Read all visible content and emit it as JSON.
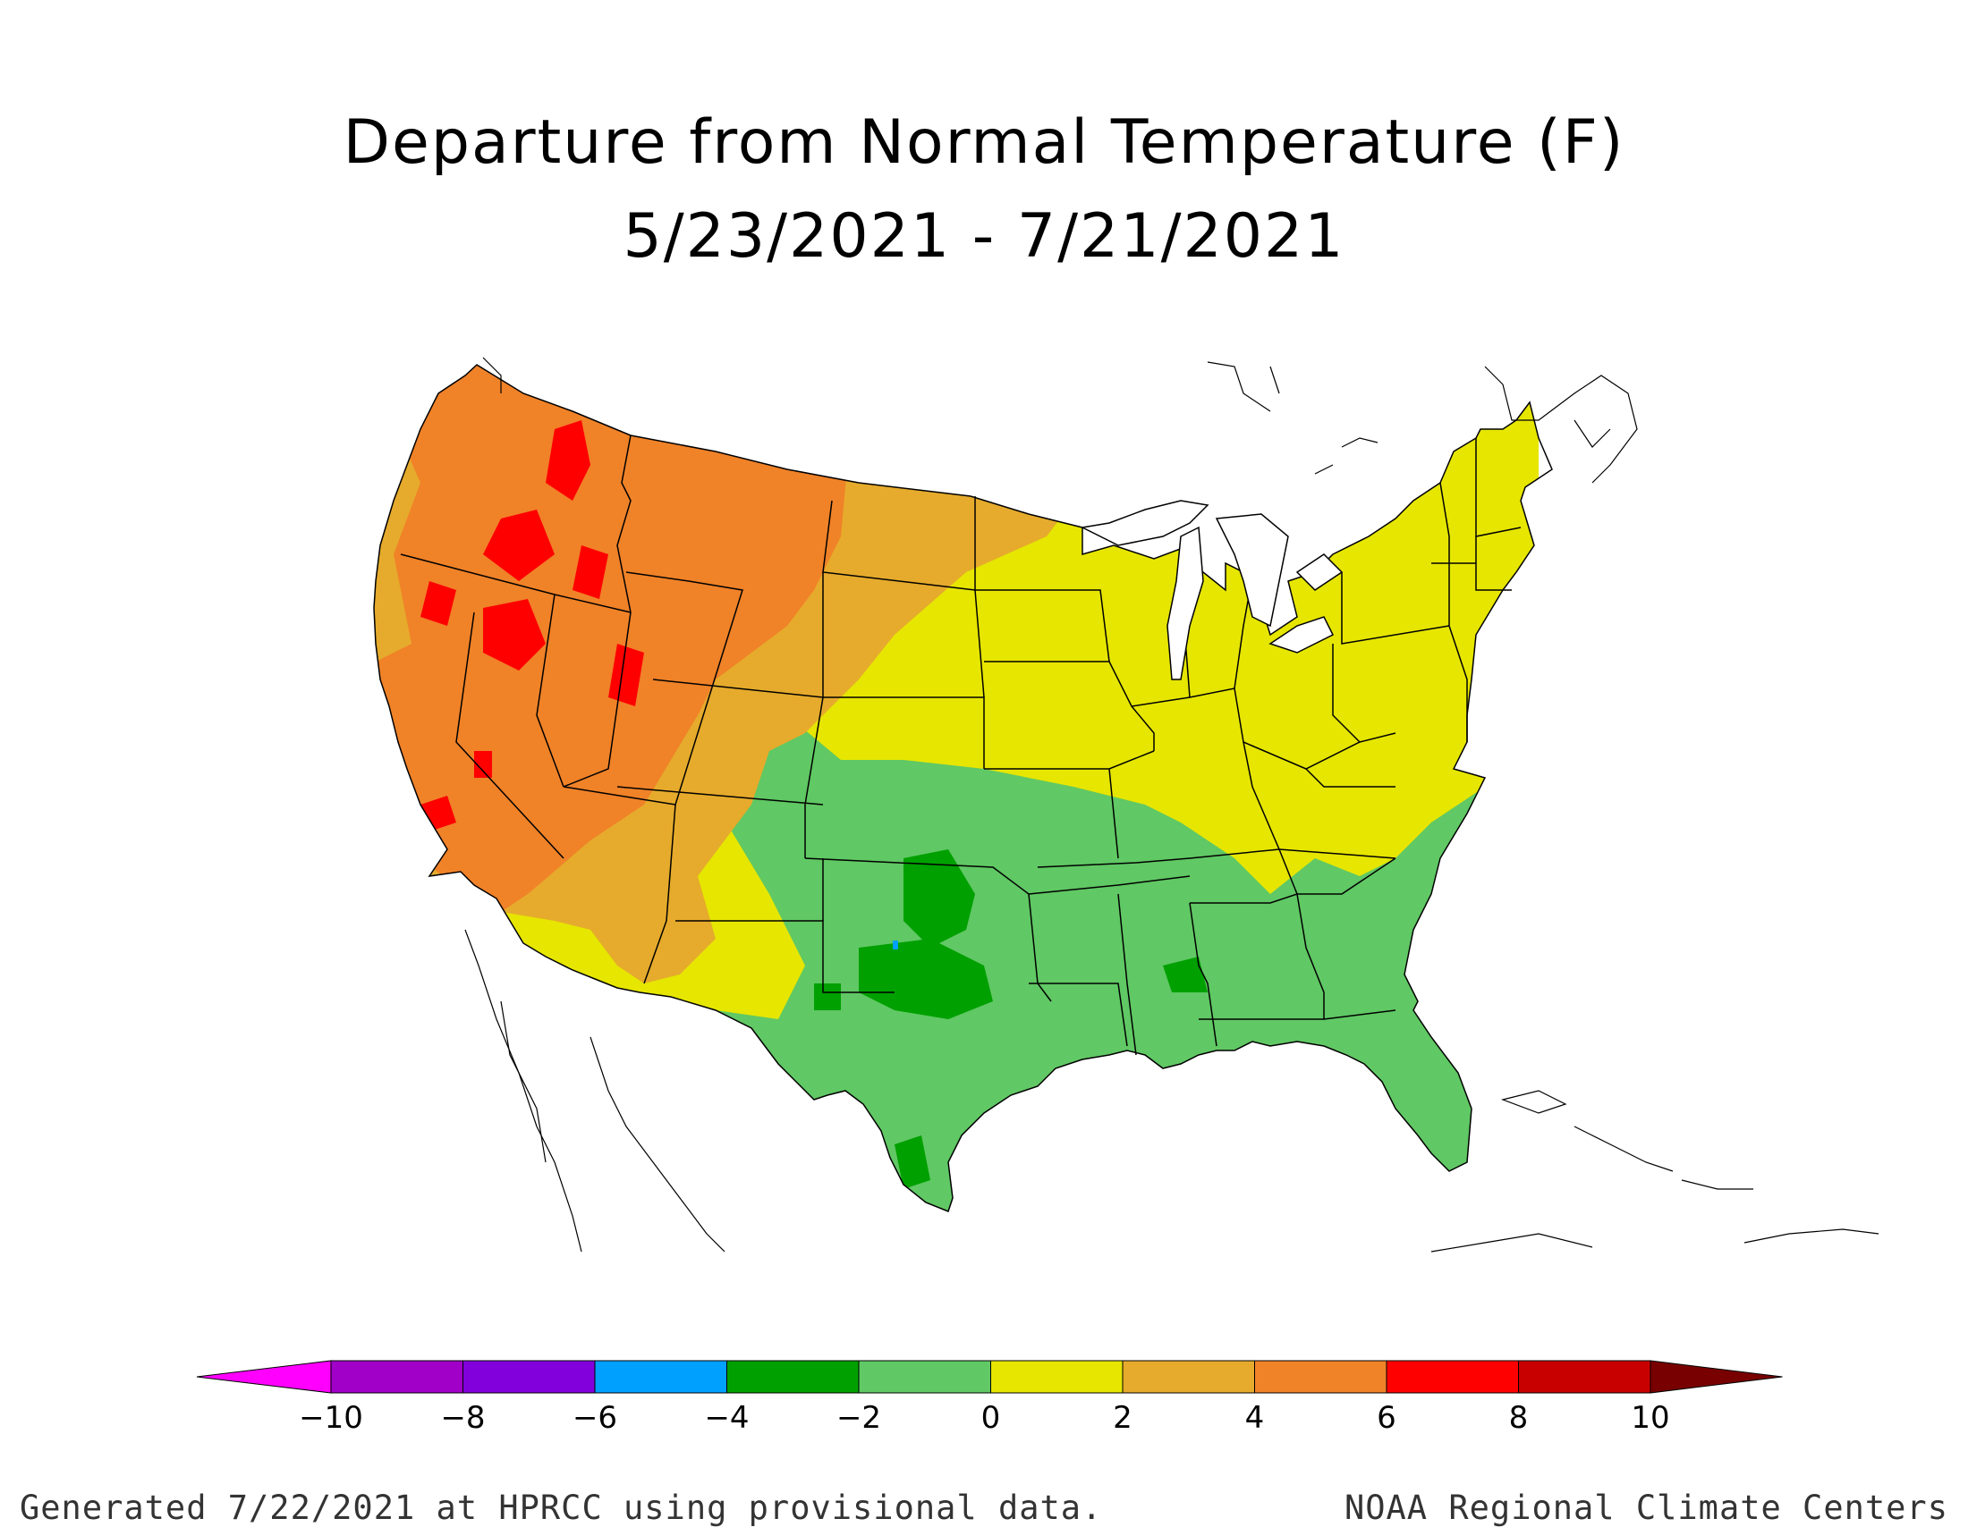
{
  "title": {
    "line1": "Departure from Normal Temperature (F)",
    "line2": "5/23/2021 - 7/21/2021"
  },
  "map": {
    "type": "filled contour map",
    "region": "Contiguous United States",
    "colors": {
      "land_base": "#60c864",
      "background": "#ffffff",
      "boundary": "#000000"
    }
  },
  "legend": {
    "ticks": [
      "−10",
      "−8",
      "−6",
      "−4",
      "−2",
      "0",
      "2",
      "4",
      "6",
      "8",
      "10"
    ],
    "bins": [
      {
        "range": "< -10",
        "color": "#ff00ff"
      },
      {
        "range": "-10 to -8",
        "color": "#a000c8"
      },
      {
        "range": "-8 to -6",
        "color": "#8200dc"
      },
      {
        "range": "-6 to -4",
        "color": "#00a0ff"
      },
      {
        "range": "-4 to -2",
        "color": "#00a000"
      },
      {
        "range": "-2 to 0",
        "color": "#60c864"
      },
      {
        "range": "0 to 2",
        "color": "#e6e600"
      },
      {
        "range": "2 to 4",
        "color": "#e6ab2c"
      },
      {
        "range": "4 to 6",
        "color": "#f08228"
      },
      {
        "range": "6 to 8",
        "color": "#ff0000"
      },
      {
        "range": "8 to 10",
        "color": "#c80000"
      },
      {
        "range": "> 10",
        "color": "#780000"
      }
    ]
  },
  "footer": {
    "left": "Generated 7/22/2021 at HPRCC using provisional data.",
    "right": "NOAA Regional Climate Centers"
  }
}
